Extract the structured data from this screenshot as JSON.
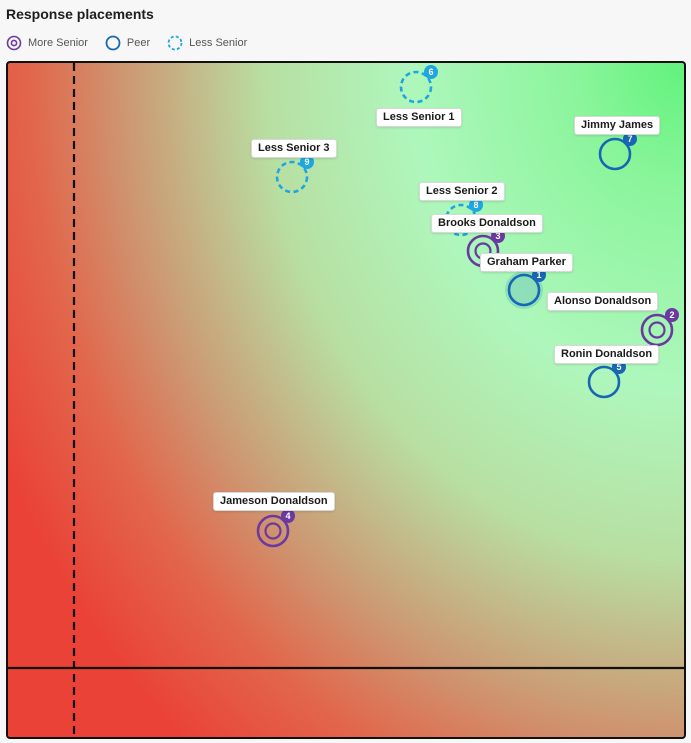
{
  "header": {
    "title": "Response placements"
  },
  "legend": [
    {
      "key": "more",
      "label": "More Senior",
      "icon": "more-senior-icon"
    },
    {
      "key": "peer",
      "label": "Peer",
      "icon": "peer-icon"
    },
    {
      "key": "less",
      "label": "Less Senior",
      "icon": "less-senior-icon"
    }
  ],
  "colors": {
    "more_senior": "#6b3aa0",
    "peer": "#1867b4",
    "less_senior": "#1ea6e0",
    "gradient_good": "#62f27c",
    "gradient_bad": "#ea4236",
    "border": "#111111"
  },
  "placements": [
    {
      "id": "1",
      "name": "Graham Parker",
      "type": "peer",
      "highlighted": true
    },
    {
      "id": "2",
      "name": "Alonso Donaldson",
      "type": "more"
    },
    {
      "id": "3",
      "name": "Brooks Donaldson",
      "type": "more"
    },
    {
      "id": "4",
      "name": "Jameson Donaldson",
      "type": "more"
    },
    {
      "id": "5",
      "name": "Ronin Donaldson",
      "type": "peer"
    },
    {
      "id": "6",
      "name": "Less Senior 1",
      "type": "less"
    },
    {
      "id": "7",
      "name": "Jimmy James",
      "type": "peer"
    },
    {
      "id": "8",
      "name": "Less Senior 2",
      "type": "less"
    },
    {
      "id": "9",
      "name": "Less Senior 3",
      "type": "less"
    }
  ]
}
